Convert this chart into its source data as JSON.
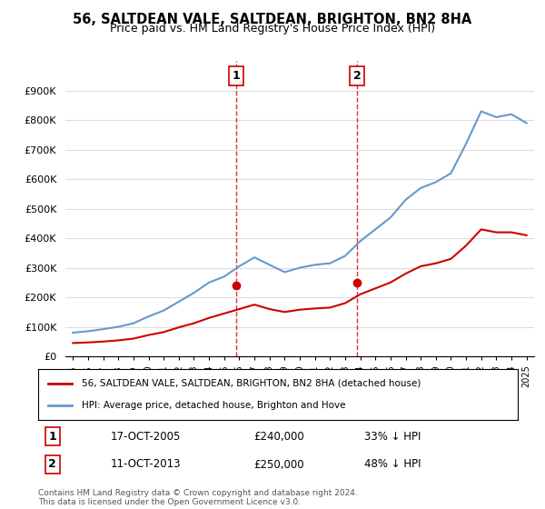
{
  "title": "56, SALTDEAN VALE, SALTDEAN, BRIGHTON, BN2 8HA",
  "subtitle": "Price paid vs. HM Land Registry's House Price Index (HPI)",
  "legend_line1": "56, SALTDEAN VALE, SALTDEAN, BRIGHTON, BN2 8HA (detached house)",
  "legend_line2": "HPI: Average price, detached house, Brighton and Hove",
  "footer": "Contains HM Land Registry data © Crown copyright and database right 2024.\nThis data is licensed under the Open Government Licence v3.0.",
  "transaction1_label": "1",
  "transaction1_date": "17-OCT-2005",
  "transaction1_price": "£240,000",
  "transaction1_hpi": "33% ↓ HPI",
  "transaction1_year": 2005.8,
  "transaction2_label": "2",
  "transaction2_date": "11-OCT-2013",
  "transaction2_price": "£250,000",
  "transaction2_hpi": "48% ↓ HPI",
  "transaction2_year": 2013.8,
  "hpi_color": "#6699cc",
  "price_color": "#cc0000",
  "vline_color": "#cc0000",
  "background_color": "#ffffff",
  "grid_color": "#dddddd",
  "ylim": [
    0,
    1000000
  ],
  "yticks": [
    0,
    100000,
    200000,
    300000,
    400000,
    500000,
    600000,
    700000,
    800000,
    900000
  ],
  "ytick_labels": [
    "£0",
    "£100K",
    "£200K",
    "£300K",
    "£400K",
    "£500K",
    "£600K",
    "£700K",
    "£800K",
    "£900K"
  ],
  "xlim_start": 1994.5,
  "xlim_end": 2025.5,
  "hpi_years": [
    1995,
    1996,
    1997,
    1998,
    1999,
    2000,
    2001,
    2002,
    2003,
    2004,
    2005,
    2006,
    2007,
    2008,
    2009,
    2010,
    2011,
    2012,
    2013,
    2014,
    2015,
    2016,
    2017,
    2018,
    2019,
    2020,
    2021,
    2022,
    2023,
    2024,
    2025
  ],
  "hpi_values": [
    80000,
    85000,
    92000,
    100000,
    112000,
    135000,
    155000,
    185000,
    215000,
    250000,
    270000,
    305000,
    335000,
    310000,
    285000,
    300000,
    310000,
    315000,
    340000,
    390000,
    430000,
    470000,
    530000,
    570000,
    590000,
    620000,
    720000,
    830000,
    810000,
    820000,
    790000
  ],
  "price_years": [
    1995,
    1996,
    1997,
    1998,
    1999,
    2000,
    2001,
    2002,
    2003,
    2004,
    2005,
    2006,
    2007,
    2008,
    2009,
    2010,
    2011,
    2012,
    2013,
    2014,
    2015,
    2016,
    2017,
    2018,
    2019,
    2020,
    2021,
    2022,
    2023,
    2024,
    2025
  ],
  "price_values": [
    45000,
    47000,
    50000,
    54000,
    60000,
    72000,
    82000,
    98000,
    112000,
    130000,
    145000,
    160000,
    175000,
    160000,
    150000,
    158000,
    162000,
    165000,
    180000,
    210000,
    230000,
    250000,
    280000,
    305000,
    315000,
    330000,
    375000,
    430000,
    420000,
    420000,
    410000
  ],
  "transaction1_price_value": 240000,
  "transaction2_price_value": 250000,
  "dot_color": "#cc0000"
}
